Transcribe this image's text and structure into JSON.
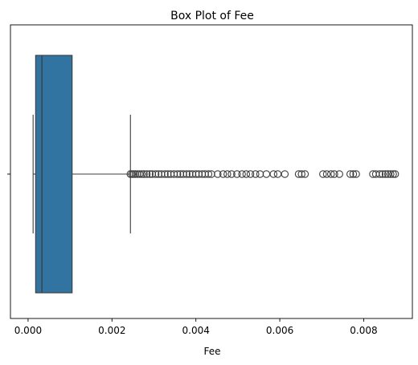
{
  "chart_data": {
    "type": "boxplot",
    "orientation": "horizontal",
    "title": "Box Plot of Fee",
    "xlabel": "Fee",
    "ylabel": "",
    "xlim": [
      -0.00042,
      0.00916
    ],
    "xticks": [
      0.0,
      0.002,
      0.004,
      0.006,
      0.008
    ],
    "xtick_labels": [
      "0.000",
      "0.002",
      "0.004",
      "0.006",
      "0.008"
    ],
    "grid": false,
    "box": {
      "whisker_low": 0.00012,
      "q1": 0.00018,
      "median": 0.00033,
      "q3": 0.00105,
      "whisker_high": 0.00244,
      "color": "#3274a1",
      "edge_color": "#3d3d3d"
    },
    "outliers": [
      0.00244,
      0.00248,
      0.00252,
      0.00256,
      0.00261,
      0.00266,
      0.00271,
      0.00276,
      0.00283,
      0.0029,
      0.00296,
      0.00304,
      0.00311,
      0.00318,
      0.00326,
      0.00333,
      0.0034,
      0.00348,
      0.00356,
      0.00363,
      0.0037,
      0.00378,
      0.00385,
      0.00392,
      0.004,
      0.00407,
      0.00415,
      0.00422,
      0.0043,
      0.00437,
      0.00452,
      0.00465,
      0.00475,
      0.00485,
      0.00498,
      0.0051,
      0.0052,
      0.0053,
      0.00542,
      0.00553,
      0.00568,
      0.00585,
      0.00595,
      0.00612,
      0.00645,
      0.00652,
      0.0066,
      0.00703,
      0.00712,
      0.00722,
      0.0073,
      0.00742,
      0.00768,
      0.00775,
      0.00782,
      0.00822,
      0.00829,
      0.00838,
      0.00845,
      0.00852,
      0.00858,
      0.00864,
      0.0087,
      0.00875
    ]
  }
}
